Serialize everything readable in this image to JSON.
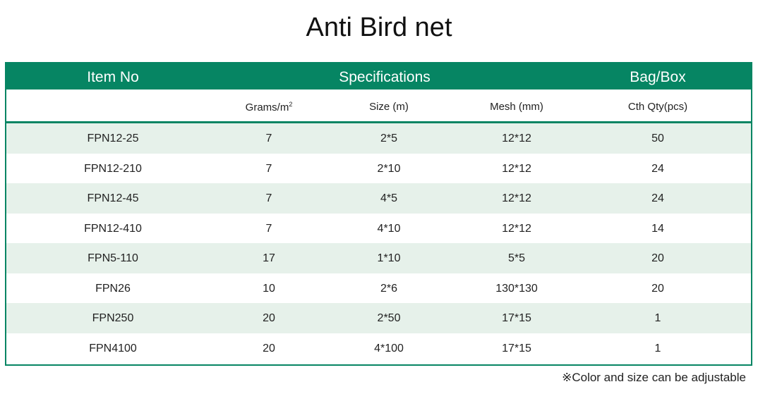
{
  "title": "Anti Bird net",
  "colors": {
    "accent": "#068563",
    "row_alt": "#e6f1ea"
  },
  "header": {
    "item_no": "Item No",
    "specifications": "Specifications",
    "bag_box": "Bag/Box"
  },
  "subheader": {
    "grams": "Grams/m",
    "grams_sup": "2",
    "size": "Size (m)",
    "mesh": "Mesh (mm)",
    "qty": "Cth Qty(pcs)"
  },
  "rows": [
    {
      "item": "FPN12-25",
      "grams": "7",
      "size": "2*5",
      "mesh": "12*12",
      "qty": "50"
    },
    {
      "item": "FPN12-210",
      "grams": "7",
      "size": "2*10",
      "mesh": "12*12",
      "qty": "24"
    },
    {
      "item": "FPN12-45",
      "grams": "7",
      "size": "4*5",
      "mesh": "12*12",
      "qty": "24"
    },
    {
      "item": "FPN12-410",
      "grams": "7",
      "size": "4*10",
      "mesh": "12*12",
      "qty": "14"
    },
    {
      "item": "FPN5-110",
      "grams": "17",
      "size": "1*10",
      "mesh": "5*5",
      "qty": "20"
    },
    {
      "item": "FPN26",
      "grams": "10",
      "size": "2*6",
      "mesh": "130*130",
      "qty": "20"
    },
    {
      "item": "FPN250",
      "grams": "20",
      "size": "2*50",
      "mesh": "17*15",
      "qty": "1"
    },
    {
      "item": "FPN4100",
      "grams": "20",
      "size": "4*100",
      "mesh": "17*15",
      "qty": "1"
    }
  ],
  "note": "※Color and size can be adjustable"
}
